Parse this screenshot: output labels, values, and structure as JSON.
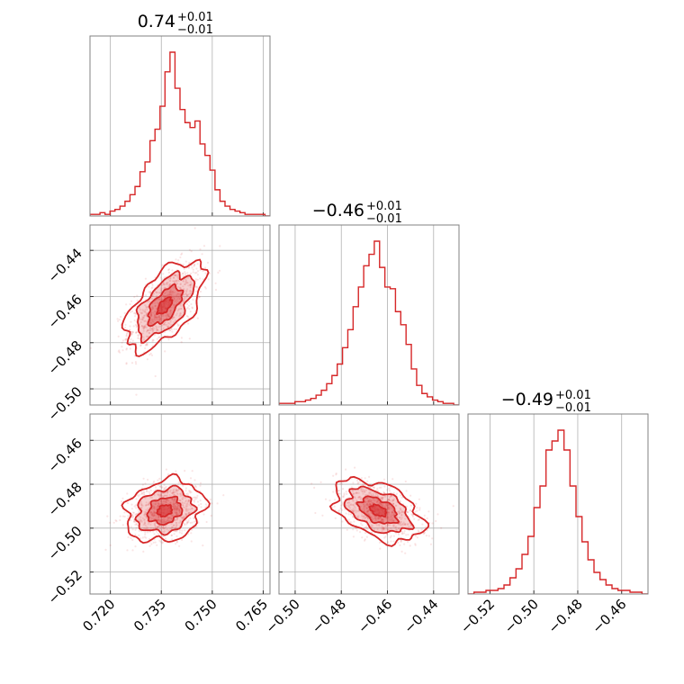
{
  "chart_data": {
    "type": "corner",
    "color": "#d62728",
    "parameters": [
      {
        "title_value": "0.74",
        "title_plus": "+0.01",
        "title_minus": "−0.01",
        "range": [
          0.714,
          0.767
        ],
        "ticks": [
          0.72,
          0.735,
          0.75,
          0.765
        ],
        "tick_labels": [
          "0.720",
          "0.735",
          "0.750",
          "0.765"
        ],
        "hist": [
          1,
          1,
          2,
          1,
          3,
          4,
          6,
          9,
          13,
          18,
          27,
          33,
          46,
          53,
          67,
          88,
          100,
          78,
          65,
          57,
          54,
          58,
          44,
          37,
          28,
          16,
          9,
          6,
          4,
          3,
          2,
          1,
          1,
          1,
          1,
          0
        ],
        "mean": 0.736,
        "sigma": 0.0045
      },
      {
        "title_value": "−0.46",
        "title_plus": "+0.01",
        "title_minus": "−0.01",
        "range": [
          -0.507,
          -0.429
        ],
        "ticks": [
          -0.5,
          -0.48,
          -0.46,
          -0.44
        ],
        "tick_labels": [
          "−0.50",
          "−0.48",
          "−0.46",
          "−0.44"
        ],
        "y_ticks": [
          -0.44,
          -0.46,
          -0.48,
          -0.5
        ],
        "y_tick_labels": [
          "−0.44",
          "−0.46",
          "−0.48",
          "−0.50"
        ],
        "hist": [
          1,
          1,
          1,
          2,
          2,
          3,
          4,
          6,
          9,
          13,
          18,
          25,
          35,
          46,
          60,
          72,
          85,
          92,
          100,
          84,
          72,
          71,
          57,
          49,
          37,
          22,
          12,
          7,
          5,
          3,
          2,
          1,
          1,
          0
        ],
        "mean": -0.464,
        "sigma": 0.0075
      },
      {
        "title_value": "−0.49",
        "title_plus": "+0.01",
        "title_minus": "−0.01",
        "range": [
          -0.53,
          -0.448
        ],
        "ticks": [
          -0.52,
          -0.5,
          -0.48,
          -0.46
        ],
        "tick_labels": [
          "−0.52",
          "−0.50",
          "−0.48",
          "−0.46"
        ],
        "y_ticks": [
          -0.46,
          -0.48,
          -0.5,
          -0.52
        ],
        "y_tick_labels": [
          "−0.46",
          "−0.48",
          "−0.50",
          "−0.52"
        ],
        "hist": [
          0,
          1,
          1,
          2,
          2,
          3,
          5,
          9,
          14,
          22,
          32,
          48,
          60,
          80,
          85,
          91,
          80,
          60,
          43,
          29,
          19,
          12,
          8,
          5,
          3,
          2,
          2,
          1,
          1,
          0
        ],
        "mean": -0.492,
        "sigma": 0.0055
      }
    ],
    "pairs": [
      {
        "x_param": 0,
        "y_param": 1,
        "correlation": 0.6,
        "center": [
          0.736,
          -0.464
        ]
      },
      {
        "x_param": 0,
        "y_param": 2,
        "correlation": 0.2,
        "center": [
          0.736,
          -0.492
        ]
      },
      {
        "x_param": 1,
        "y_param": 2,
        "correlation": -0.45,
        "center": [
          -0.464,
          -0.492
        ]
      }
    ]
  }
}
